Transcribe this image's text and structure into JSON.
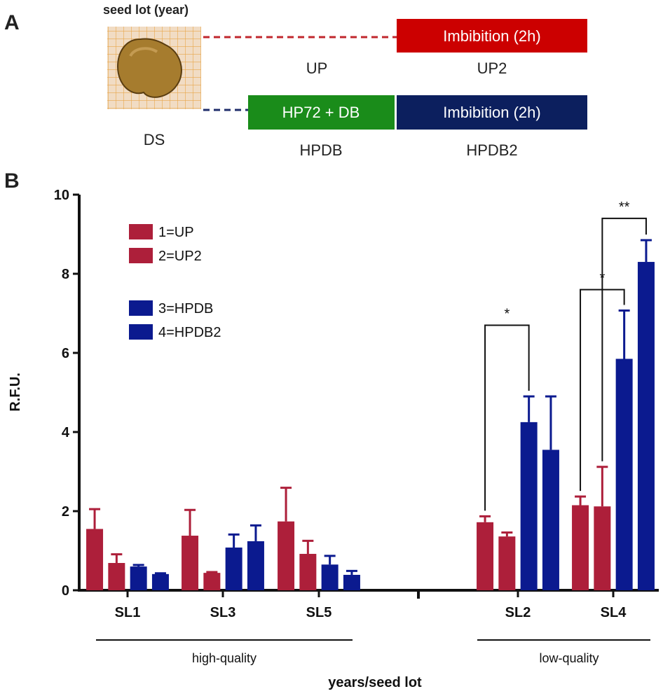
{
  "panel_a": {
    "label": "A",
    "seed_lot_label": "seed lot (year)",
    "ds_label": "DS",
    "up_label": "UP",
    "up2_label": "UP2",
    "hpdb_label": "HPDB",
    "hpdb2_label": "HPDB2",
    "imbibition_red": "Imbibition (2h)",
    "hp72_box": "HP72 + DB",
    "imbibition_blue": "Imbibition (2h)",
    "colors": {
      "red_box": "#cc0000",
      "green_box": "#1a8c1a",
      "blue_box": "#0c1f5e",
      "red_dash": "#c0272d",
      "blue_dash": "#1f2d6b",
      "seed": "#a67c2e",
      "grid_bg": "#f1dcc4",
      "grid_line": "#e8a64a"
    }
  },
  "panel_b": {
    "label": "B",
    "legend": [
      "1=UP",
      "2=UP2",
      "3=HPDB",
      "4=HPDB2"
    ],
    "quality_groups": [
      "high-quality",
      "low-quality"
    ],
    "significance": [
      "*",
      "*",
      "**"
    ],
    "colors": {
      "red": "#ad1f3a",
      "blue": "#0b1a8f"
    }
  },
  "chart_data": {
    "type": "bar",
    "title": "",
    "xlabel": "years/seed lot",
    "ylabel": "R.F.U.",
    "ylim": [
      0,
      10
    ],
    "yticks": [
      "0",
      "2",
      "4",
      "6",
      "8",
      "10"
    ],
    "categories": [
      "SL1",
      "SL3",
      "SL5",
      "SL2",
      "SL4"
    ],
    "series": [
      {
        "name": "1=UP",
        "values": [
          1.55,
          1.38,
          1.74,
          1.72,
          2.15
        ],
        "errors": [
          0.5,
          0.65,
          0.85,
          0.15,
          0.22
        ]
      },
      {
        "name": "2=UP2",
        "values": [
          0.69,
          0.44,
          0.92,
          1.36,
          2.12
        ],
        "errors": [
          0.22,
          0.02,
          0.33,
          0.1,
          1.0
        ]
      },
      {
        "name": "3=HPDB",
        "values": [
          0.6,
          1.08,
          0.65,
          4.25,
          5.85
        ],
        "errors": [
          0.04,
          0.33,
          0.22,
          0.65,
          1.22
        ]
      },
      {
        "name": "4=HPDB2",
        "values": [
          0.41,
          1.24,
          0.39,
          3.55,
          8.3
        ],
        "errors": [
          0.02,
          0.4,
          0.1,
          1.35,
          0.55
        ]
      }
    ],
    "grid": false,
    "legend_position": "top-left"
  }
}
